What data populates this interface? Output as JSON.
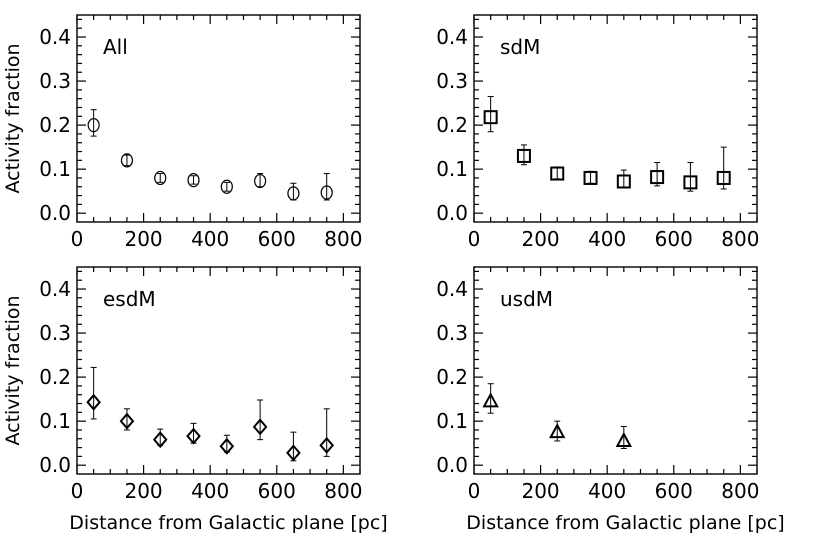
{
  "chart_data": [
    {
      "type": "scatter",
      "label": "All",
      "marker": "circle",
      "ylabel": "Activity fraction",
      "xlabel": "",
      "xlim": [
        0,
        850
      ],
      "ylim": [
        -0.02,
        0.45
      ],
      "xticks": [
        "0",
        "200",
        "400",
        "600",
        "800"
      ],
      "yticks": [
        "0.0",
        "0.1",
        "0.2",
        "0.3",
        "0.4"
      ],
      "points": [
        {
          "x": 50,
          "y": 0.2,
          "lo": 0.175,
          "hi": 0.235
        },
        {
          "x": 150,
          "y": 0.12,
          "lo": 0.108,
          "hi": 0.132
        },
        {
          "x": 250,
          "y": 0.08,
          "lo": 0.07,
          "hi": 0.09
        },
        {
          "x": 350,
          "y": 0.075,
          "lo": 0.066,
          "hi": 0.085
        },
        {
          "x": 450,
          "y": 0.06,
          "lo": 0.05,
          "hi": 0.07
        },
        {
          "x": 550,
          "y": 0.073,
          "lo": 0.06,
          "hi": 0.09
        },
        {
          "x": 650,
          "y": 0.045,
          "lo": 0.03,
          "hi": 0.068
        },
        {
          "x": 750,
          "y": 0.047,
          "lo": 0.03,
          "hi": 0.09
        }
      ]
    },
    {
      "type": "scatter",
      "label": "sdM",
      "marker": "square",
      "ylabel": "",
      "xlabel": "",
      "xlim": [
        0,
        850
      ],
      "ylim": [
        -0.02,
        0.45
      ],
      "xticks": [
        "0",
        "200",
        "400",
        "600",
        "800"
      ],
      "yticks": [
        "0.0",
        "0.1",
        "0.2",
        "0.3",
        "0.4"
      ],
      "points": [
        {
          "x": 50,
          "y": 0.218,
          "lo": 0.185,
          "hi": 0.265
        },
        {
          "x": 150,
          "y": 0.13,
          "lo": 0.11,
          "hi": 0.155
        },
        {
          "x": 250,
          "y": 0.09,
          "lo": 0.078,
          "hi": 0.105
        },
        {
          "x": 350,
          "y": 0.08,
          "lo": 0.068,
          "hi": 0.095
        },
        {
          "x": 450,
          "y": 0.072,
          "lo": 0.058,
          "hi": 0.098
        },
        {
          "x": 550,
          "y": 0.082,
          "lo": 0.062,
          "hi": 0.115
        },
        {
          "x": 650,
          "y": 0.07,
          "lo": 0.05,
          "hi": 0.115
        },
        {
          "x": 750,
          "y": 0.08,
          "lo": 0.055,
          "hi": 0.15
        }
      ]
    },
    {
      "type": "scatter",
      "label": "esdM",
      "marker": "diamond",
      "ylabel": "Activity fraction",
      "xlabel": "Distance from Galactic plane [pc]",
      "xlim": [
        0,
        850
      ],
      "ylim": [
        -0.02,
        0.45
      ],
      "xticks": [
        "0",
        "200",
        "400",
        "600",
        "800"
      ],
      "yticks": [
        "0.0",
        "0.1",
        "0.2",
        "0.3",
        "0.4"
      ],
      "points": [
        {
          "x": 50,
          "y": 0.143,
          "lo": 0.105,
          "hi": 0.222
        },
        {
          "x": 150,
          "y": 0.1,
          "lo": 0.08,
          "hi": 0.128
        },
        {
          "x": 250,
          "y": 0.058,
          "lo": 0.045,
          "hi": 0.082
        },
        {
          "x": 350,
          "y": 0.066,
          "lo": 0.05,
          "hi": 0.095
        },
        {
          "x": 450,
          "y": 0.043,
          "lo": 0.03,
          "hi": 0.068
        },
        {
          "x": 550,
          "y": 0.087,
          "lo": 0.058,
          "hi": 0.148
        },
        {
          "x": 650,
          "y": 0.028,
          "lo": 0.01,
          "hi": 0.075
        },
        {
          "x": 750,
          "y": 0.045,
          "lo": 0.02,
          "hi": 0.128
        }
      ]
    },
    {
      "type": "scatter",
      "label": "usdM",
      "marker": "triangle",
      "ylabel": "",
      "xlabel": "Distance from Galactic plane [pc]",
      "xlim": [
        0,
        850
      ],
      "ylim": [
        -0.02,
        0.45
      ],
      "xticks": [
        "0",
        "200",
        "400",
        "600",
        "800"
      ],
      "yticks": [
        "0.0",
        "0.1",
        "0.2",
        "0.3",
        "0.4"
      ],
      "points": [
        {
          "x": 50,
          "y": 0.145,
          "lo": 0.118,
          "hi": 0.185
        },
        {
          "x": 250,
          "y": 0.075,
          "lo": 0.055,
          "hi": 0.1
        },
        {
          "x": 450,
          "y": 0.055,
          "lo": 0.038,
          "hi": 0.088
        }
      ]
    }
  ]
}
